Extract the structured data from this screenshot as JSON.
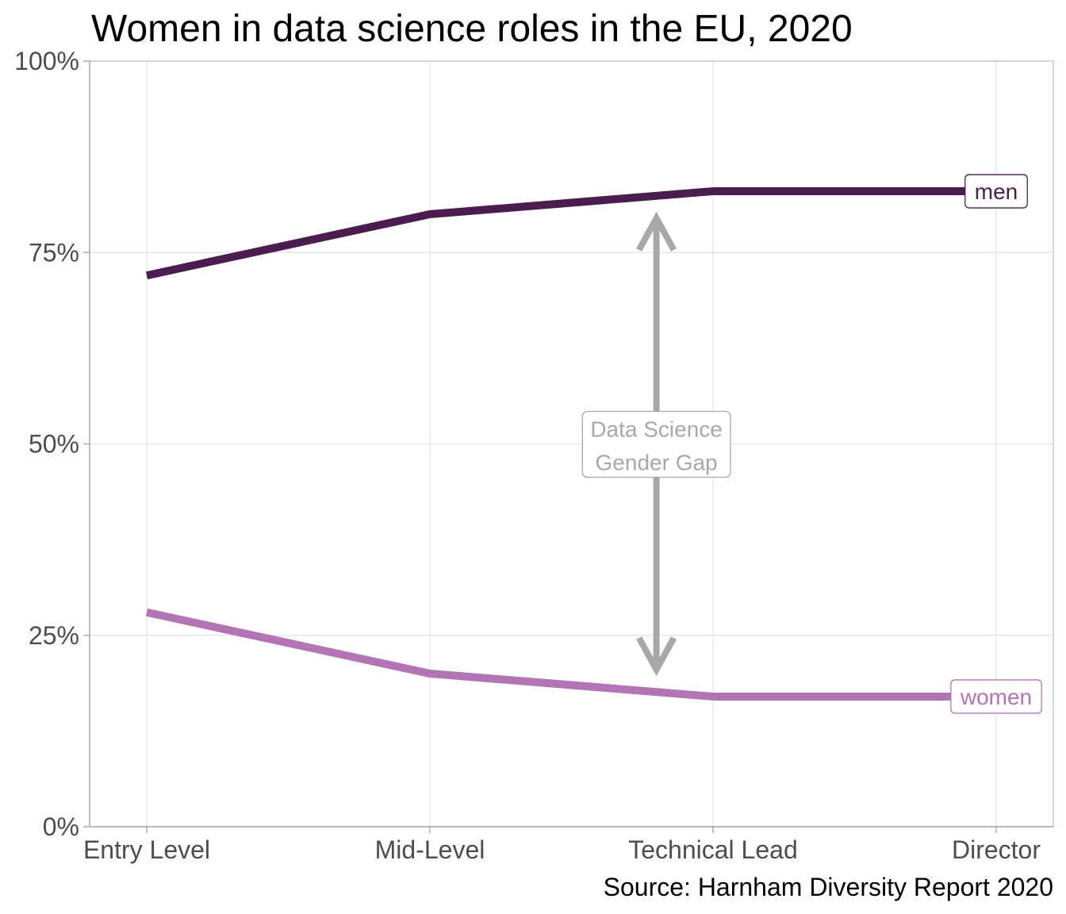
{
  "chart_data": {
    "type": "line",
    "title": "Women in data science roles in the EU, 2020",
    "caption": "Source: Harnham Diversity Report 2020",
    "categories": [
      "Entry Level",
      "Mid-Level",
      "Technical Lead",
      "Director"
    ],
    "series": [
      {
        "name": "men",
        "values": [
          72,
          80,
          83,
          83
        ],
        "color": "#4a1c4f"
      },
      {
        "name": "women",
        "values": [
          28,
          20,
          17,
          17
        ],
        "color": "#b374b5"
      }
    ],
    "ylim": [
      0,
      100
    ],
    "yticks": [
      {
        "value": 0,
        "label": "0%"
      },
      {
        "value": 25,
        "label": "25%"
      },
      {
        "value": 50,
        "label": "50%"
      },
      {
        "value": 75,
        "label": "75%"
      },
      {
        "value": 100,
        "label": "100%"
      }
    ],
    "grid": true,
    "legend": "right",
    "annotation": {
      "lines": [
        "Data Science",
        "Gender Gap"
      ],
      "color": "#a8a8a8"
    }
  }
}
